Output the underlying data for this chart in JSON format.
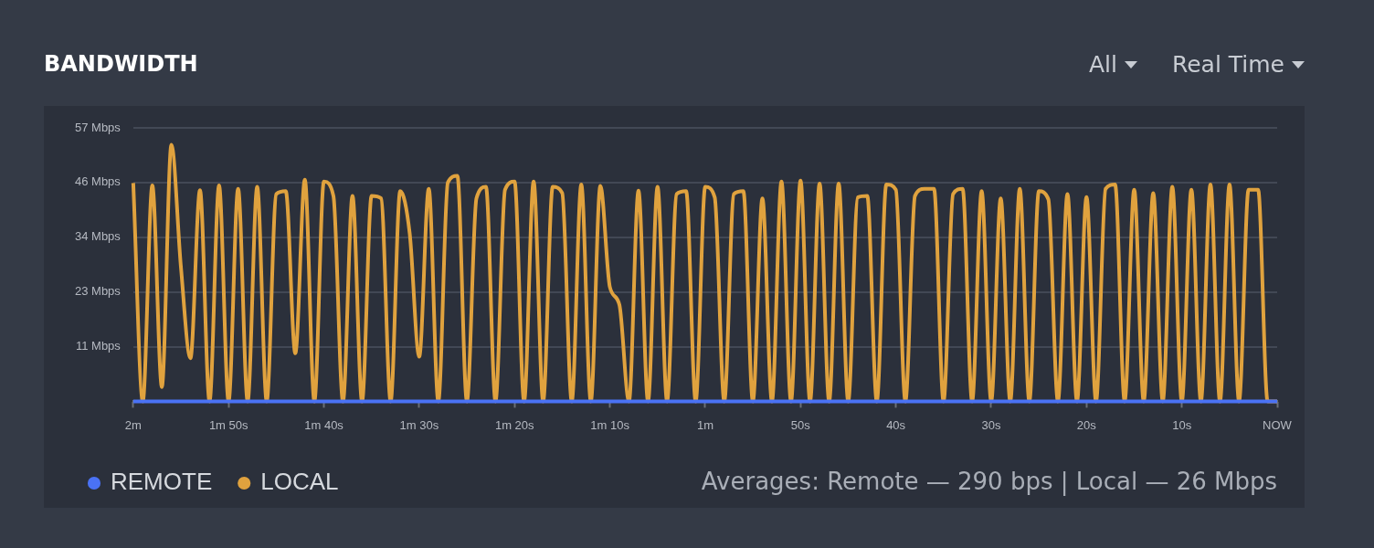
{
  "chart_data": {
    "type": "line",
    "title": "BANDWIDTH",
    "annotations": [
      "Averages: Remote — 290 bps | Local — 26 Mbps",
      "All",
      "Real Time"
    ],
    "categories": [
      "2m",
      null,
      null,
      null,
      null,
      null,
      null,
      null,
      null,
      null,
      "1m 50s",
      null,
      null,
      null,
      null,
      null,
      null,
      null,
      null,
      null,
      "1m 40s",
      null,
      null,
      null,
      null,
      null,
      null,
      null,
      null,
      null,
      "1m 30s",
      null,
      null,
      null,
      null,
      null,
      null,
      null,
      null,
      null,
      "1m 20s",
      null,
      null,
      null,
      null,
      null,
      null,
      null,
      null,
      null,
      "1m 10s",
      null,
      null,
      null,
      null,
      null,
      null,
      null,
      null,
      null,
      "1m",
      null,
      null,
      null,
      null,
      null,
      null,
      null,
      null,
      null,
      "50s",
      null,
      null,
      null,
      null,
      null,
      null,
      null,
      null,
      null,
      "40s",
      null,
      null,
      null,
      null,
      null,
      null,
      null,
      null,
      null,
      "30s",
      null,
      null,
      null,
      null,
      null,
      null,
      null,
      null,
      null,
      "20s",
      null,
      null,
      null,
      null,
      null,
      null,
      null,
      null,
      null,
      "10s",
      null,
      null,
      null,
      null,
      null,
      null,
      null,
      null,
      null,
      "NOW"
    ],
    "ylim": [
      0,
      57
    ],
    "yticks": [
      {
        "value": 11.4,
        "label": "11 Mbps"
      },
      {
        "value": 22.8,
        "label": "23 Mbps"
      },
      {
        "value": 34.2,
        "label": "34 Mbps"
      },
      {
        "value": 45.6,
        "label": "46 Mbps"
      },
      {
        "value": 57,
        "label": "57 Mbps"
      }
    ],
    "grid": "y",
    "legend": "bottom left",
    "marker": "none",
    "line_style": "solid",
    "series": [
      {
        "name": "REMOTE",
        "color": "#4a72f5",
        "values": [
          0,
          0,
          0,
          0,
          0,
          0,
          0,
          0,
          0,
          0,
          0,
          0,
          0,
          0,
          0,
          0,
          0,
          0,
          0,
          0,
          0,
          0,
          0,
          0,
          0,
          0,
          0,
          0,
          0,
          0,
          0,
          0,
          0,
          0,
          0,
          0,
          0,
          0,
          0,
          0,
          0,
          0,
          0,
          0,
          0,
          0,
          0,
          0,
          0,
          0,
          0,
          0,
          0,
          0,
          0,
          0,
          0,
          0,
          0,
          0,
          0,
          0,
          0,
          0,
          0,
          0,
          0,
          0,
          0,
          0,
          0,
          0,
          0,
          0,
          0,
          0,
          0,
          0,
          0,
          0,
          0,
          0,
          0,
          0,
          0,
          0,
          0,
          0,
          0,
          0,
          0,
          0,
          0,
          0,
          0,
          0,
          0,
          0,
          0,
          0,
          0,
          0,
          0,
          0,
          0,
          0,
          0,
          0,
          0,
          0,
          0,
          0,
          0,
          0,
          0,
          0,
          0,
          0,
          0,
          0,
          0
        ]
      },
      {
        "name": "LOCAL",
        "color": "#e0a23e",
        "values": [
          45.5,
          0,
          45,
          3,
          53.5,
          28,
          9,
          44,
          0,
          45,
          0,
          44.3,
          0,
          44.7,
          0,
          43.2,
          43.8,
          10,
          46.2,
          0,
          45.8,
          42.8,
          0,
          42.8,
          0,
          42.8,
          42.3,
          0,
          43.8,
          35,
          9.3,
          44.3,
          0,
          45.6,
          47,
          0,
          42.3,
          44.7,
          0,
          44.1,
          45.8,
          0,
          45.8,
          0,
          44.7,
          43.4,
          0,
          45.2,
          0,
          44.9,
          23.8,
          20.1,
          0,
          43.9,
          0,
          44.7,
          0,
          43.2,
          43.8,
          0,
          44.7,
          42.5,
          0,
          43.2,
          43.8,
          0,
          42.3,
          0,
          45.8,
          0,
          46,
          0,
          45.4,
          0,
          45.4,
          0,
          42.5,
          42.8,
          0,
          45.2,
          44.1,
          0,
          42.8,
          44.3,
          44.3,
          0,
          43.2,
          44.3,
          0,
          43.8,
          0,
          42.3,
          0,
          44.3,
          0,
          43.8,
          42.1,
          0,
          43.2,
          0,
          42.6,
          0,
          44.3,
          45.2,
          0,
          44.1,
          0,
          43.4,
          0,
          44.7,
          0,
          44.1,
          0,
          45.2,
          0,
          45.2,
          0,
          44.1,
          44.1,
          0,
          0
        ]
      }
    ]
  }
}
